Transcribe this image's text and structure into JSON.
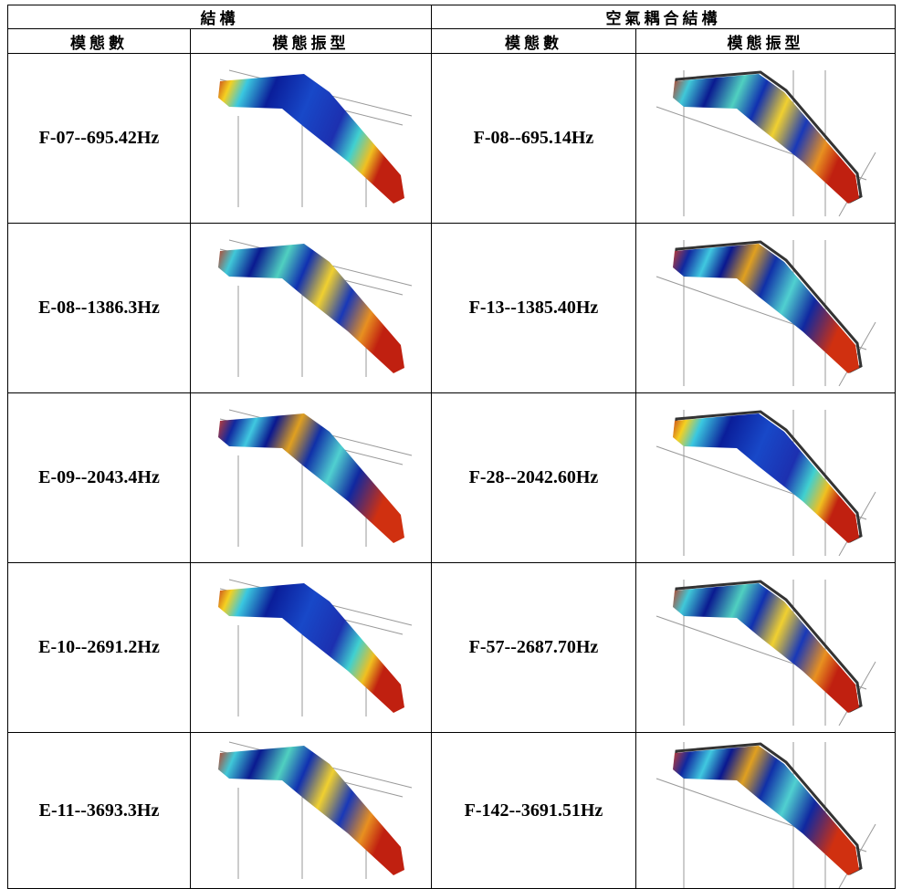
{
  "header": {
    "groups": [
      "結構",
      "空氣耦合結構"
    ],
    "columns": [
      "模態數",
      "模態振型",
      "模態數",
      "模態振型"
    ]
  },
  "table": {
    "rows": [
      [
        "F-07--695.42Hz",
        "F-08--695.14Hz"
      ],
      [
        "E-08--1386.3Hz",
        "F-13--1385.40Hz"
      ],
      [
        "E-09--2043.4Hz",
        "F-28--2042.60Hz"
      ],
      [
        "E-10--2691.2Hz",
        "F-57--2687.70Hz"
      ],
      [
        "E-11--3693.3Hz",
        "F-142--3691.51Hz"
      ]
    ]
  }
}
